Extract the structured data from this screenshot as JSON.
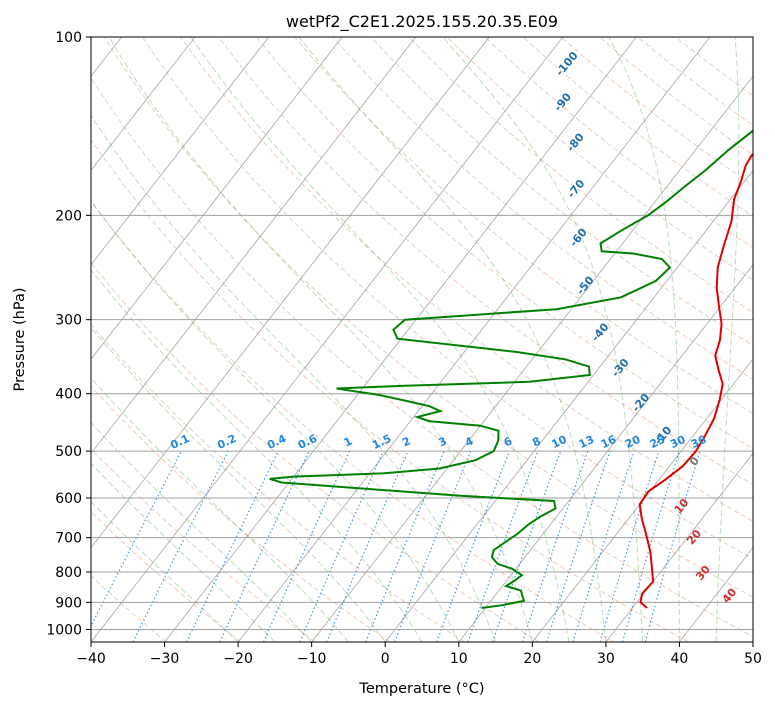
{
  "chart_data": {
    "type": "line",
    "title": "wetPf2_C2E1.2025.155.20.35.E09",
    "xlabel": "Temperature (°C)",
    "ylabel": "Pressure (hPa)",
    "xlim": [
      -40,
      50
    ],
    "ylim": [
      1050,
      100
    ],
    "y_scale": "log",
    "grid": true,
    "x_ticks": [
      "−40",
      "−30",
      "−20",
      "−10",
      "0",
      "10",
      "20",
      "30",
      "40",
      "50"
    ],
    "x_tick_values": [
      -40,
      -30,
      -20,
      -10,
      0,
      10,
      20,
      30,
      40,
      50
    ],
    "y_ticks": [
      "100",
      "200",
      "300",
      "400",
      "500",
      "600",
      "700",
      "800",
      "900",
      "1000"
    ],
    "y_tick_values": [
      100,
      200,
      300,
      400,
      500,
      600,
      700,
      800,
      900,
      1000
    ],
    "series": [
      {
        "role": "temperature",
        "color": "#e00000",
        "points": [
          [
            32.0,
            920
          ],
          [
            30.5,
            900
          ],
          [
            29.8,
            870
          ],
          [
            30.0,
            830
          ],
          [
            28.5,
            790
          ],
          [
            26.5,
            740
          ],
          [
            24.0,
            690
          ],
          [
            21.8,
            650
          ],
          [
            20.0,
            615
          ],
          [
            19.8,
            585
          ],
          [
            20.8,
            560
          ],
          [
            21.8,
            530
          ],
          [
            22.0,
            500
          ],
          [
            21.6,
            470
          ],
          [
            21.0,
            440
          ],
          [
            19.8,
            410
          ],
          [
            18.5,
            385
          ],
          [
            16.5,
            365
          ],
          [
            14.5,
            345
          ],
          [
            13.5,
            325
          ],
          [
            12.0,
            305
          ],
          [
            9.8,
            285
          ],
          [
            7.5,
            265
          ],
          [
            5.5,
            245
          ],
          [
            4.0,
            225
          ],
          [
            2.5,
            205
          ],
          [
            0.5,
            188
          ],
          [
            -0.5,
            175
          ],
          [
            -1.5,
            165
          ],
          [
            -1.8,
            158
          ],
          [
            -0.5,
            150
          ],
          [
            0.0,
            140
          ],
          [
            -0.3,
            130
          ],
          [
            -0.5,
            120
          ],
          [
            -0.2,
            113
          ],
          [
            0.5,
            107
          ],
          [
            1.8,
            100
          ]
        ]
      },
      {
        "role": "dewpoint",
        "color": "#008000",
        "points": [
          [
            9.5,
            920
          ],
          [
            12.0,
            910
          ],
          [
            14.5,
            895
          ],
          [
            13.0,
            860
          ],
          [
            10.5,
            845
          ],
          [
            11.0,
            830
          ],
          [
            11.5,
            810
          ],
          [
            9.5,
            790
          ],
          [
            7.0,
            775
          ],
          [
            5.5,
            755
          ],
          [
            5.0,
            735
          ],
          [
            5.8,
            710
          ],
          [
            6.5,
            690
          ],
          [
            7.0,
            665
          ],
          [
            7.8,
            645
          ],
          [
            9.0,
            625
          ],
          [
            8.0,
            607
          ],
          [
            -5.0,
            595
          ],
          [
            -31.0,
            565
          ],
          [
            -33.0,
            557
          ],
          [
            -30.0,
            552
          ],
          [
            -18.0,
            545
          ],
          [
            -11.0,
            535
          ],
          [
            -7.0,
            518
          ],
          [
            -5.5,
            500
          ],
          [
            -6.0,
            480
          ],
          [
            -7.0,
            462
          ],
          [
            -10.0,
            453
          ],
          [
            -17.5,
            445
          ],
          [
            -19.5,
            438
          ],
          [
            -17.0,
            428
          ],
          [
            -19.0,
            420
          ],
          [
            -22.0,
            413
          ],
          [
            -27.0,
            402
          ],
          [
            -33.5,
            392
          ],
          [
            -25.0,
            388
          ],
          [
            -8.0,
            382
          ],
          [
            -0.5,
            372
          ],
          [
            -1.5,
            360
          ],
          [
            -5.5,
            350
          ],
          [
            -13.0,
            340
          ],
          [
            -30.5,
            323
          ],
          [
            -32.0,
            312
          ],
          [
            -31.5,
            300
          ],
          [
            -25.0,
            296
          ],
          [
            -12.0,
            288
          ],
          [
            -4.5,
            275
          ],
          [
            -1.5,
            258
          ],
          [
            -1.0,
            245
          ],
          [
            -3.0,
            237
          ],
          [
            -7.5,
            232
          ],
          [
            -12.0,
            230
          ],
          [
            -13.0,
            223
          ],
          [
            -11.5,
            212
          ],
          [
            -9.5,
            200
          ],
          [
            -8.5,
            190
          ],
          [
            -7.5,
            178
          ],
          [
            -6.5,
            168
          ],
          [
            -5.5,
            155
          ],
          [
            -3.5,
            138
          ],
          [
            -2.5,
            130
          ],
          [
            -1.0,
            122
          ],
          [
            0.2,
            115
          ],
          [
            0.0,
            108
          ],
          [
            0.5,
            103
          ],
          [
            1.0,
            100
          ]
        ]
      }
    ],
    "dry_adiabat_labels": [
      {
        "text": "-100",
        "x": -36,
        "p": 112
      },
      {
        "text": "-90",
        "x": -32.5,
        "p": 130
      },
      {
        "text": "-80",
        "x": -26.5,
        "p": 152
      },
      {
        "text": "-70",
        "x": -21.5,
        "p": 182
      },
      {
        "text": "-60",
        "x": -16,
        "p": 220
      },
      {
        "text": "-50",
        "x": -10,
        "p": 265
      },
      {
        "text": "-40",
        "x": -3,
        "p": 318
      },
      {
        "text": "-30",
        "x": 3.5,
        "p": 365
      },
      {
        "text": "-20",
        "x": 10,
        "p": 418
      },
      {
        "text": "-10",
        "x": 16.5,
        "p": 475
      }
    ],
    "moist_adiabat_labels": [
      {
        "text": "0",
        "x": 23.5,
        "p": 525,
        "color": "#777777"
      },
      {
        "text": "10",
        "x": 26.5,
        "p": 625,
        "color": "#d03030"
      },
      {
        "text": "20",
        "x": 31.5,
        "p": 705,
        "color": "#d03030"
      },
      {
        "text": "30",
        "x": 36.5,
        "p": 810,
        "color": "#d03030"
      },
      {
        "text": "40",
        "x": 42.5,
        "p": 885,
        "color": "#d03030"
      }
    ],
    "mixing_ratio_labels": [
      "0.1",
      "0.2",
      "0.4",
      "0.6",
      "1",
      "1.5",
      "2",
      "3",
      "4",
      "6",
      "8",
      "10",
      "13",
      "16",
      "20",
      "25",
      "30",
      "36"
    ],
    "mixing_ratio_values": [
      0.1,
      0.2,
      0.4,
      0.6,
      1,
      1.5,
      2,
      3,
      4,
      6,
      8,
      10,
      13,
      16,
      20,
      25,
      30,
      36
    ],
    "mixing_ratio_label_pressure": 500,
    "colors": {
      "dry_adiabat_label": "#1f6fb0",
      "mixing_ratio": "#2288dd",
      "moist_adiabat": "#ff7f50",
      "dry_adiabat": "#3a9d3a",
      "isotherm": "#808080",
      "grid": "#a0a0a0"
    }
  }
}
